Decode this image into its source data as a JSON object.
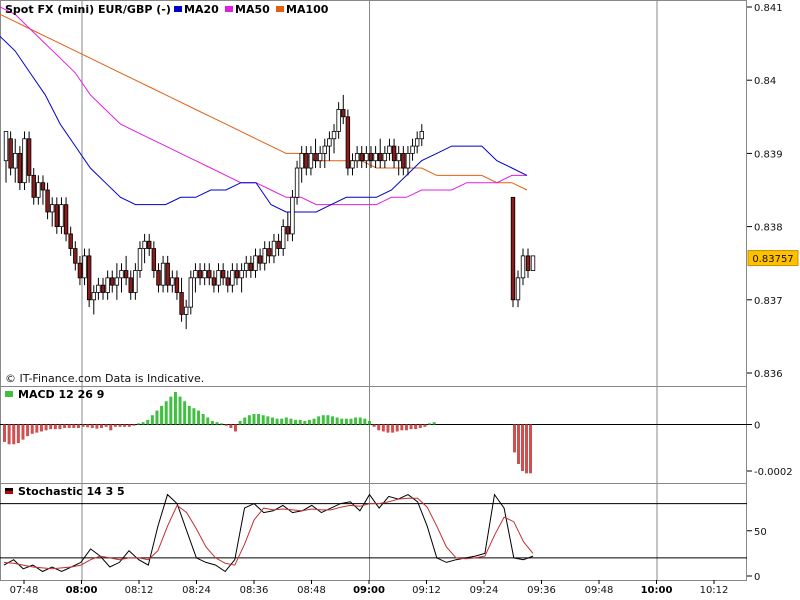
{
  "legend": {
    "instrument": "Spot FX (mini) EUR/GBP (-)",
    "ma20": "MA20",
    "ma50": "MA50",
    "ma100": "MA100",
    "ma20_color": "#0000cc",
    "ma50_color": "#e020e0",
    "ma100_color": "#e06010"
  },
  "disclaimer": "© IT-Finance.com Data is Indicative.",
  "macd_label": "MACD 12 26 9",
  "stoch_label": "Stochastic 14 3 5",
  "last_price_label": "0.83757",
  "chart_data": [
    {
      "type": "candlestick",
      "title": "Spot FX (mini) EUR/GBP (-)",
      "x_ticks": [
        "07:48",
        "08:00",
        "08:12",
        "08:24",
        "08:36",
        "08:48",
        "09:00",
        "09:12",
        "09:24",
        "09:36",
        "09:48",
        "10:00",
        "10:12"
      ],
      "bold_ticks": [
        "08:00",
        "09:00",
        "10:00"
      ],
      "y_ticks": [
        "0.841",
        "0.84",
        "0.839",
        "0.838",
        "0.837",
        "0.836"
      ],
      "ylim": [
        0.836,
        0.841
      ],
      "last_price": 0.83757,
      "grid": "vertical-hourly",
      "candles": [
        [
          0.8389,
          0.8393,
          0.8386,
          0.8393
        ],
        [
          0.8392,
          0.8393,
          0.8387,
          0.8388
        ],
        [
          0.8388,
          0.8392,
          0.8386,
          0.839
        ],
        [
          0.839,
          0.8391,
          0.8385,
          0.8386
        ],
        [
          0.8386,
          0.8393,
          0.8385,
          0.8392
        ],
        [
          0.8392,
          0.8393,
          0.8386,
          0.8387
        ],
        [
          0.8387,
          0.8388,
          0.8383,
          0.8384
        ],
        [
          0.8384,
          0.8387,
          0.8383,
          0.8386
        ],
        [
          0.8386,
          0.8387,
          0.8383,
          0.8385
        ],
        [
          0.8385,
          0.8386,
          0.8381,
          0.8382
        ],
        [
          0.8382,
          0.8384,
          0.838,
          0.8383
        ],
        [
          0.8383,
          0.8384,
          0.8379,
          0.838
        ],
        [
          0.838,
          0.8384,
          0.8379,
          0.8383
        ],
        [
          0.8383,
          0.8384,
          0.8378,
          0.8379
        ],
        [
          0.8379,
          0.838,
          0.8376,
          0.8377
        ],
        [
          0.8377,
          0.8378,
          0.8374,
          0.8375
        ],
        [
          0.8375,
          0.8376,
          0.8372,
          0.8373
        ],
        [
          0.8373,
          0.8377,
          0.8372,
          0.8376
        ],
        [
          0.8376,
          0.8377,
          0.8369,
          0.837
        ],
        [
          0.837,
          0.8372,
          0.8368,
          0.8371
        ],
        [
          0.8371,
          0.8373,
          0.837,
          0.8372
        ],
        [
          0.8372,
          0.8373,
          0.837,
          0.8371
        ],
        [
          0.8371,
          0.8374,
          0.837,
          0.8373
        ],
        [
          0.8373,
          0.8374,
          0.8371,
          0.8372
        ],
        [
          0.8372,
          0.8375,
          0.837,
          0.8373
        ],
        [
          0.8373,
          0.8375,
          0.8371,
          0.8374
        ],
        [
          0.8374,
          0.8376,
          0.8372,
          0.8373
        ],
        [
          0.8373,
          0.8374,
          0.837,
          0.8371
        ],
        [
          0.8371,
          0.8375,
          0.837,
          0.8374
        ],
        [
          0.8374,
          0.8378,
          0.8373,
          0.8377
        ],
        [
          0.8377,
          0.8379,
          0.8375,
          0.8378
        ],
        [
          0.8378,
          0.8379,
          0.8376,
          0.8377
        ],
        [
          0.8377,
          0.8378,
          0.8373,
          0.8374
        ],
        [
          0.8374,
          0.8375,
          0.8371,
          0.8372
        ],
        [
          0.8372,
          0.8376,
          0.8371,
          0.8375
        ],
        [
          0.8375,
          0.8376,
          0.8371,
          0.8372
        ],
        [
          0.8372,
          0.8374,
          0.8371,
          0.8373
        ],
        [
          0.8373,
          0.8374,
          0.837,
          0.8371
        ],
        [
          0.8371,
          0.8373,
          0.8367,
          0.8368
        ],
        [
          0.8368,
          0.837,
          0.8366,
          0.8369
        ],
        [
          0.8369,
          0.8374,
          0.8368,
          0.8373
        ],
        [
          0.8373,
          0.8375,
          0.8371,
          0.8374
        ],
        [
          0.8374,
          0.8375,
          0.8372,
          0.8373
        ],
        [
          0.8373,
          0.8375,
          0.8372,
          0.8374
        ],
        [
          0.8374,
          0.8375,
          0.8372,
          0.8373
        ],
        [
          0.8373,
          0.8374,
          0.8371,
          0.8372
        ],
        [
          0.8372,
          0.8375,
          0.8371,
          0.8374
        ],
        [
          0.8374,
          0.8375,
          0.8372,
          0.8373
        ],
        [
          0.8373,
          0.8374,
          0.8371,
          0.8372
        ],
        [
          0.8372,
          0.8375,
          0.8371,
          0.8374
        ],
        [
          0.8374,
          0.8375,
          0.8372,
          0.8373
        ],
        [
          0.8373,
          0.8375,
          0.8371,
          0.8374
        ],
        [
          0.8374,
          0.8376,
          0.8373,
          0.8375
        ],
        [
          0.8375,
          0.8376,
          0.8373,
          0.8374
        ],
        [
          0.8374,
          0.8377,
          0.8373,
          0.8376
        ],
        [
          0.8376,
          0.8377,
          0.8374,
          0.8375
        ],
        [
          0.8375,
          0.8378,
          0.8374,
          0.8377
        ],
        [
          0.8377,
          0.8378,
          0.8375,
          0.8376
        ],
        [
          0.8376,
          0.8379,
          0.8375,
          0.8378
        ],
        [
          0.8378,
          0.8379,
          0.8376,
          0.8377
        ],
        [
          0.8377,
          0.8381,
          0.8376,
          0.838
        ],
        [
          0.838,
          0.8382,
          0.8378,
          0.8379
        ],
        [
          0.8379,
          0.8385,
          0.8378,
          0.8384
        ],
        [
          0.8384,
          0.8389,
          0.8383,
          0.8388
        ],
        [
          0.8388,
          0.8391,
          0.8386,
          0.839
        ],
        [
          0.839,
          0.8391,
          0.8387,
          0.8388
        ],
        [
          0.8388,
          0.8391,
          0.8387,
          0.839
        ],
        [
          0.839,
          0.8392,
          0.8388,
          0.8389
        ],
        [
          0.8389,
          0.8391,
          0.8388,
          0.839
        ],
        [
          0.839,
          0.8392,
          0.8388,
          0.8391
        ],
        [
          0.8391,
          0.8393,
          0.8389,
          0.8392
        ],
        [
          0.8392,
          0.8394,
          0.839,
          0.8393
        ],
        [
          0.8393,
          0.8397,
          0.8392,
          0.8396
        ],
        [
          0.8396,
          0.8398,
          0.8394,
          0.8395
        ],
        [
          0.8395,
          0.8396,
          0.8387,
          0.8388
        ],
        [
          0.8388,
          0.839,
          0.8387,
          0.8389
        ],
        [
          0.8389,
          0.8391,
          0.8388,
          0.839
        ],
        [
          0.839,
          0.8391,
          0.8388,
          0.8389
        ],
        [
          0.8389,
          0.8391,
          0.8388,
          0.839
        ],
        [
          0.839,
          0.8391,
          0.8388,
          0.8389
        ],
        [
          0.8389,
          0.8391,
          0.8388,
          0.839
        ],
        [
          0.839,
          0.8392,
          0.8388,
          0.8389
        ],
        [
          0.8389,
          0.8391,
          0.8388,
          0.839
        ],
        [
          0.839,
          0.8392,
          0.8389,
          0.8391
        ],
        [
          0.8391,
          0.8392,
          0.8388,
          0.8389
        ],
        [
          0.8389,
          0.8391,
          0.8387,
          0.839
        ],
        [
          0.839,
          0.8391,
          0.8387,
          0.8388
        ],
        [
          0.8388,
          0.8391,
          0.8387,
          0.839
        ],
        [
          0.839,
          0.8392,
          0.8389,
          0.8391
        ],
        [
          0.8391,
          0.8393,
          0.839,
          0.8392
        ],
        [
          0.8392,
          0.8394,
          0.8391,
          0.8393
        ],
        [
          0.8384,
          0.8384,
          0.8369,
          0.837
        ],
        [
          0.837,
          0.8374,
          0.8369,
          0.8373
        ],
        [
          0.8373,
          0.8377,
          0.8372,
          0.8376
        ],
        [
          0.8376,
          0.8377,
          0.8373,
          0.8374
        ],
        [
          0.8374,
          0.8376,
          0.8374,
          0.8376
        ]
      ],
      "ma20": [
        0.8406,
        0.8404,
        0.8401,
        0.8398,
        0.8394,
        0.8391,
        0.8388,
        0.8386,
        0.8384,
        0.8383,
        0.8383,
        0.8383,
        0.8384,
        0.8384,
        0.8385,
        0.8385,
        0.8386,
        0.8386,
        0.8383,
        0.8382,
        0.8382,
        0.8382,
        0.8383,
        0.8384,
        0.8384,
        0.8384,
        0.8385,
        0.8387,
        0.8389,
        0.839,
        0.8391,
        0.8391,
        0.8391,
        0.8389,
        0.8388,
        0.8387
      ],
      "ma50": [
        0.841,
        0.8409,
        0.8407,
        0.8405,
        0.8403,
        0.8401,
        0.8398,
        0.8396,
        0.8394,
        0.8393,
        0.8392,
        0.8391,
        0.839,
        0.8389,
        0.8388,
        0.8387,
        0.8386,
        0.8386,
        0.8385,
        0.8384,
        0.8384,
        0.8383,
        0.8383,
        0.8383,
        0.8383,
        0.8383,
        0.8384,
        0.8384,
        0.8385,
        0.8385,
        0.8385,
        0.8386,
        0.8386,
        0.8386,
        0.8387,
        0.8387
      ],
      "ma100": [
        0.8409,
        0.8408,
        0.8407,
        0.8406,
        0.8405,
        0.8404,
        0.8403,
        0.8402,
        0.8401,
        0.84,
        0.8399,
        0.8398,
        0.8397,
        0.8396,
        0.8395,
        0.8394,
        0.8393,
        0.8392,
        0.8391,
        0.839,
        0.839,
        0.8389,
        0.8389,
        0.8389,
        0.8389,
        0.8388,
        0.8388,
        0.8388,
        0.8388,
        0.8387,
        0.8387,
        0.8387,
        0.8387,
        0.8386,
        0.8386,
        0.8385
      ]
    },
    {
      "type": "bar",
      "title": "MACD 12 26 9",
      "y_ticks": [
        "0",
        "-0.0002"
      ],
      "ylim": [
        -0.00025,
        0.0002
      ],
      "values": [
        -7.5e-05,
        -8.5e-05,
        -8.5e-05,
        -8e-05,
        -6.5e-05,
        -5e-05,
        -4e-05,
        -3.5e-05,
        -3e-05,
        -2.5e-05,
        -2e-05,
        -2e-05,
        -2e-05,
        -1.5e-05,
        -1.5e-05,
        -1.5e-05,
        -1.5e-05,
        -1e-05,
        -1.2e-05,
        -1.5e-05,
        -1.8e-05,
        -1.5e-05,
        -1e-05,
        -2.5e-05,
        -1e-05,
        -1e-05,
        -1e-05,
        -1e-05,
        -5e-06,
        5e-06,
        1e-05,
        2e-05,
        4e-05,
        6e-05,
        8e-05,
        0.0001,
        0.00012,
        0.00014,
        0.00012,
        0.0001,
        8e-05,
        7e-05,
        6e-05,
        4.5e-05,
        3e-05,
        1.5e-05,
        1e-05,
        5e-06,
        -5e-06,
        -1.5e-05,
        -3e-05,
        1.5e-05,
        3e-05,
        4e-05,
        4.5e-05,
        4.5e-05,
        4e-05,
        3.5e-05,
        3e-05,
        2.5e-05,
        2.5e-05,
        3e-05,
        2.5e-05,
        2e-05,
        2e-05,
        1.5e-05,
        2e-05,
        2.5e-05,
        3.5e-05,
        4e-05,
        4e-05,
        3.5e-05,
        3e-05,
        2.5e-05,
        2.5e-05,
        2.5e-05,
        3e-05,
        3e-05,
        2.5e-05,
        1.5e-05,
        -1e-05,
        -2.5e-05,
        -3e-05,
        -3.5e-05,
        -3.5e-05,
        -3e-05,
        -2.5e-05,
        -2.5e-05,
        -2e-05,
        -2e-05,
        -1.5e-05,
        -1e-05,
        5e-06,
        1e-05,
        -0.00012,
        -0.00017,
        -0.0002,
        -0.00021,
        -0.00021
      ]
    },
    {
      "type": "line",
      "title": "Stochastic 14 3 5",
      "y_ticks": [
        "50",
        "0"
      ],
      "ylim": [
        0,
        100
      ],
      "levels": [
        80,
        20
      ],
      "x_ticks_shared": true,
      "series": [
        {
          "values": [
            12,
            18,
            8,
            12,
            5,
            10,
            5,
            10,
            15,
            30,
            22,
            10,
            15,
            28,
            18,
            12,
            55,
            90,
            80,
            50,
            20,
            15,
            12,
            5,
            18,
            75,
            80,
            70,
            72,
            78,
            70,
            72,
            78,
            70,
            75,
            80,
            82,
            72,
            90,
            75,
            88,
            85,
            90,
            82,
            55,
            20,
            15,
            18,
            20,
            22,
            25,
            90,
            75,
            20,
            18,
            22
          ]
        },
        {
          "values": [
            15,
            14,
            12,
            10,
            9,
            8,
            9,
            10,
            12,
            18,
            22,
            20,
            18,
            20,
            20,
            18,
            28,
            55,
            78,
            70,
            52,
            32,
            20,
            14,
            12,
            35,
            62,
            75,
            73,
            74,
            73,
            72,
            74,
            73,
            73,
            76,
            78,
            77,
            80,
            80,
            82,
            85,
            86,
            86,
            76,
            55,
            32,
            20,
            19,
            20,
            22,
            45,
            65,
            60,
            38,
            25
          ]
        }
      ]
    }
  ]
}
